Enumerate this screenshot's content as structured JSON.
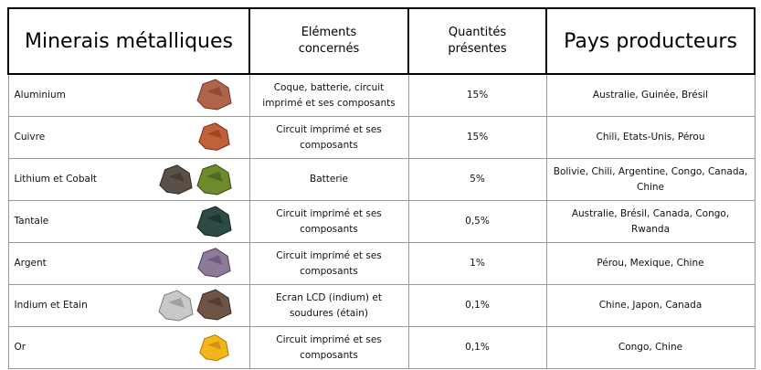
{
  "table": {
    "header": [
      "Minerais métalliques",
      "Eléments concernés",
      "Quantités présentes",
      "Pays producteurs"
    ],
    "rows": [
      [
        "Aluminium",
        "Coque, batterie, circuit imprimé et ses composants",
        "15%",
        "Australie, Guinée, Brésil"
      ],
      [
        "Cuivre",
        "Circuit imprimé et ses composants",
        "15%",
        "Chili, Etats-Unis, Pérou"
      ],
      [
        "Lithium et Cobalt",
        "Batterie",
        "5%",
        "Bolivie, Chili, Argentine, Congo, Canada, Chine"
      ],
      [
        "Tantale",
        "Circuit imprimé et ses composants",
        "0,5%",
        "Australie, Brésil, Canada, Congo, Rwanda"
      ],
      [
        "Argent",
        "Circuit imprimé et ses composants",
        "1%",
        "Pérou, Mexique, Chine"
      ],
      [
        "Indium et Etain",
        "Ecran LCD (indium) et soudures (étain)",
        "0,1%",
        "Chine, Japon, Canada"
      ],
      [
        "Or",
        "Circuit imprimé et ses composants",
        "0,1%",
        "Congo, Chine"
      ]
    ]
  }
}
